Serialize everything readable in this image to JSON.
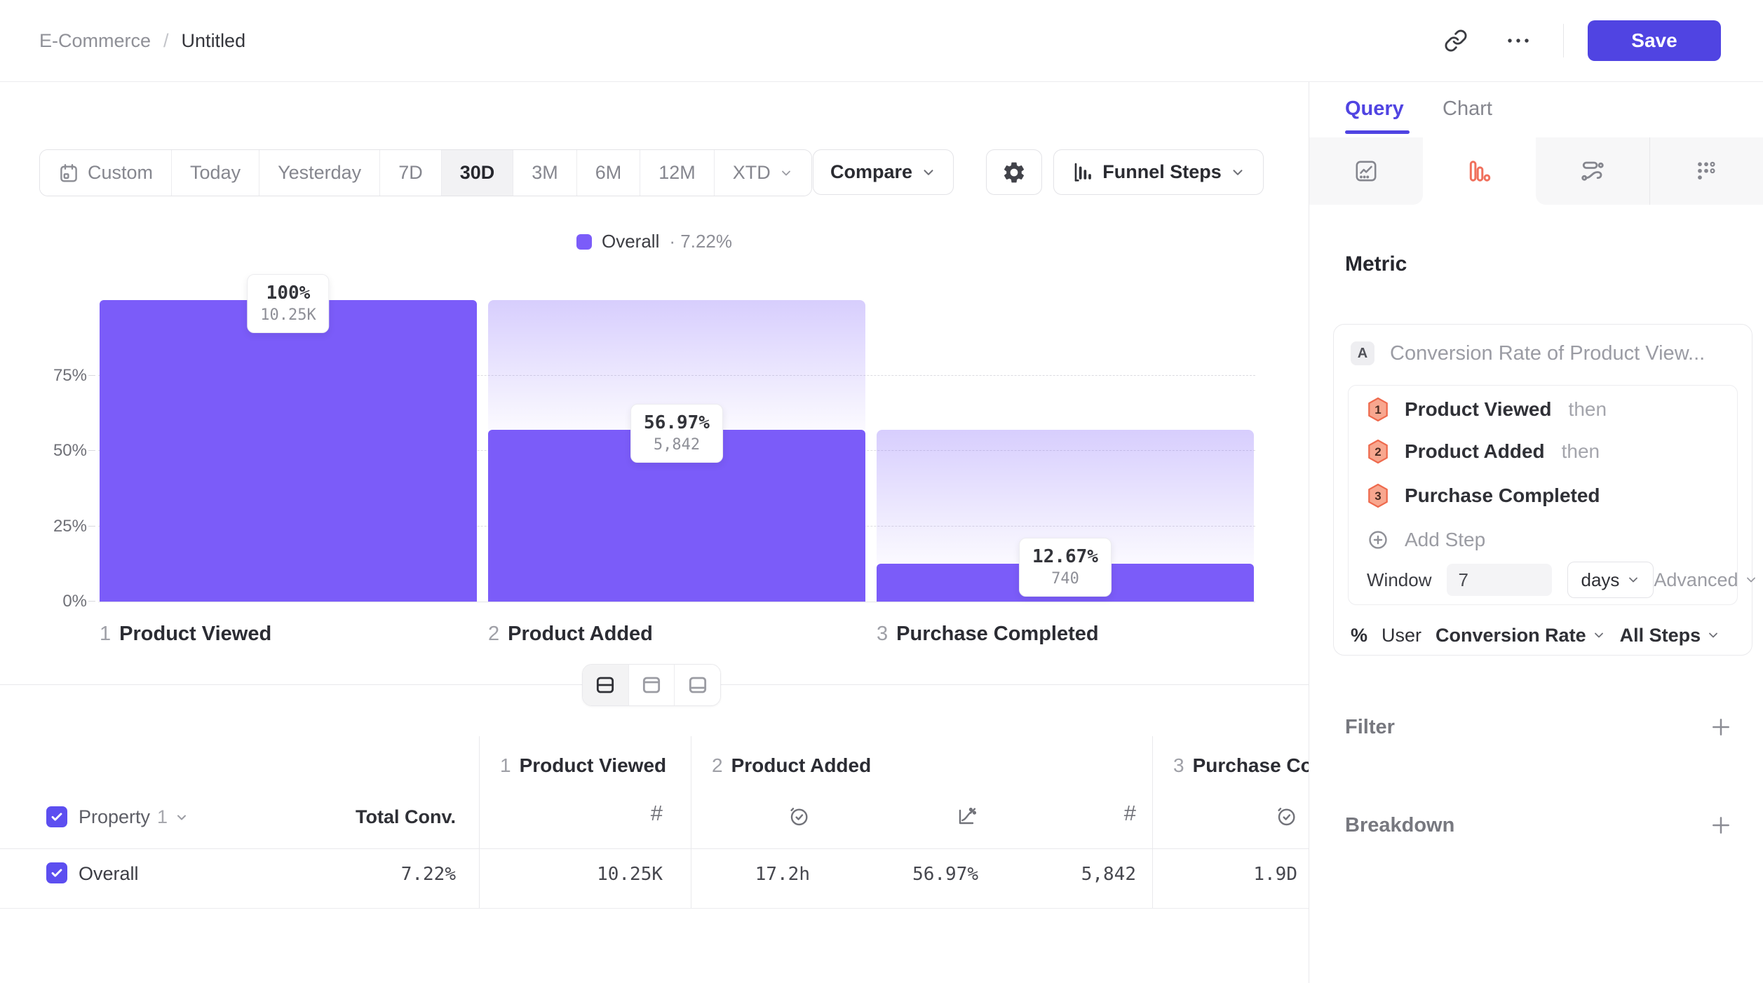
{
  "topbar": {
    "breadcrumb": {
      "parent": "E-Commerce",
      "separator": "/",
      "current": "Untitled"
    },
    "save_label": "Save"
  },
  "toolbar": {
    "date_ranges": [
      {
        "label": "Custom",
        "icon": "calendar-icon",
        "active": false
      },
      {
        "label": "Today",
        "active": false
      },
      {
        "label": "Yesterday",
        "active": false
      },
      {
        "label": "7D",
        "active": false
      },
      {
        "label": "30D",
        "active": true
      },
      {
        "label": "3M",
        "active": false
      },
      {
        "label": "6M",
        "active": false
      },
      {
        "label": "12M",
        "active": false
      },
      {
        "label": "XTD",
        "active": false,
        "has_chevron": true
      }
    ],
    "compare_label": "Compare",
    "chart_type_label": "Funnel Steps"
  },
  "legend": {
    "series": "Overall",
    "separator": "·",
    "value": "7.22%"
  },
  "chart_data": {
    "type": "bar",
    "subtype": "funnel-steps",
    "title": "",
    "legend": [
      {
        "label": "Overall",
        "value": "7.22%",
        "color": "#7b5cf9",
        "position": "top-center"
      }
    ],
    "y_axis": {
      "ticks": [
        "0%",
        "25%",
        "50%",
        "75%"
      ],
      "range": [
        0,
        100
      ],
      "gridlines": "dashed"
    },
    "steps": [
      {
        "index": "1",
        "name": "Product Viewed",
        "conversion_pct": 100,
        "pct_label": "100%",
        "count": 10250,
        "count_label": "10.25K"
      },
      {
        "index": "2",
        "name": "Product Added",
        "conversion_pct": 56.97,
        "pct_label": "56.97%",
        "count": 5842,
        "count_label": "5,842"
      },
      {
        "index": "3",
        "name": "Purchase Completed",
        "conversion_pct": 12.67,
        "pct_label": "12.67%",
        "count": 740,
        "count_label": "740"
      }
    ],
    "bar_color": "#7b5cf9",
    "overall_conversion": "7.22%"
  },
  "view_toggle": {
    "options": [
      "split-view",
      "chart-only",
      "table-only"
    ],
    "active": "split-view"
  },
  "table": {
    "property_header": {
      "label": "Property",
      "number": "1"
    },
    "total_conv_header": "Total Conv.",
    "step_columns": [
      {
        "index": "1",
        "name": "Product Viewed",
        "metric_icons": [
          "hash-icon"
        ]
      },
      {
        "index": "2",
        "name": "Product Added",
        "metric_icons": [
          "clock-check-icon",
          "chart-rate-icon",
          "hash-icon"
        ]
      },
      {
        "index": "3",
        "name": "Purchase Completed",
        "metric_icons": [
          "clock-check-icon"
        ]
      }
    ],
    "rows": [
      {
        "label": "Overall",
        "checked": true,
        "total_conv": "7.22%",
        "values": [
          "10.25K",
          "17.2h",
          "56.97%",
          "5,842",
          "1.9D"
        ]
      }
    ]
  },
  "sidebar": {
    "tabs": [
      {
        "label": "Query",
        "active": true
      },
      {
        "label": "Chart",
        "active": false
      }
    ],
    "report_types": [
      "insights-icon",
      "funnel-icon",
      "flows-icon",
      "retention-icon"
    ],
    "active_report_type": "funnel-icon",
    "metric_section": {
      "heading": "Metric",
      "series_badge": "A",
      "series_title": "Conversion Rate of Product View...",
      "steps": [
        {
          "number": "1",
          "name": "Product Viewed",
          "suffix": "then"
        },
        {
          "number": "2",
          "name": "Product Added",
          "suffix": "then"
        },
        {
          "number": "3",
          "name": "Purchase Completed",
          "suffix": ""
        }
      ],
      "add_step_label": "Add Step",
      "window": {
        "label": "Window",
        "value": "7",
        "unit": "days",
        "advanced_label": "Advanced"
      },
      "measurement": {
        "prefix": "%",
        "entity": "User",
        "metric": "Conversion Rate",
        "scope": "All Steps"
      }
    },
    "filter": {
      "heading": "Filter"
    },
    "breakdown": {
      "heading": "Breakdown"
    }
  },
  "colors": {
    "accent": "#5044e2",
    "bar": "#7b5cf9",
    "orange": "#f0705c",
    "checkbox": "#5c4ef0"
  }
}
